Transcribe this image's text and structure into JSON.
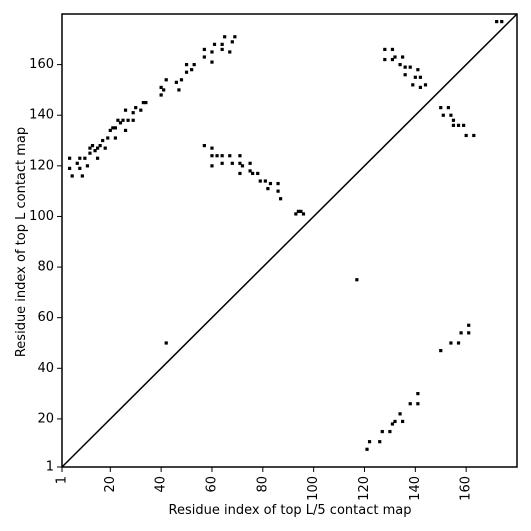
{
  "chart_data": {
    "type": "scatter",
    "x_label": "Residue index of top L/5 contact map",
    "y_label": "Residue index of top L contact map",
    "color": "#000000",
    "xlim": [
      1,
      180
    ],
    "ylim": [
      1,
      180
    ],
    "xticks": [
      1,
      20,
      40,
      60,
      80,
      100,
      120,
      140,
      160
    ],
    "yticks": [
      1,
      20,
      40,
      60,
      80,
      100,
      120,
      140,
      160
    ],
    "x": [
      4,
      4,
      5,
      7,
      8,
      8,
      9,
      10,
      11,
      12,
      12,
      13,
      14,
      15,
      15,
      16,
      17,
      18,
      19,
      20,
      21,
      22,
      22,
      23,
      24,
      25,
      26,
      26,
      27,
      29,
      29,
      30,
      32,
      33,
      34,
      40,
      40,
      41,
      42,
      46,
      47,
      48,
      50,
      50,
      52,
      53,
      57,
      57,
      60,
      60,
      61,
      64,
      64,
      65,
      67,
      68,
      69,
      57,
      60,
      60,
      60,
      62,
      64,
      64,
      67,
      68,
      71,
      71,
      71,
      72,
      75,
      75,
      76,
      78,
      79,
      81,
      82,
      83,
      86,
      86,
      87,
      93,
      94,
      95,
      96,
      117,
      42,
      128,
      128,
      131,
      131,
      132,
      134,
      135,
      136,
      136,
      138,
      140,
      139,
      141,
      142,
      142,
      144,
      150,
      151,
      153,
      154,
      155,
      155,
      157,
      159,
      160,
      163,
      172,
      174,
      121,
      122,
      126,
      127,
      130,
      131,
      132,
      134,
      135,
      138,
      141,
      141,
      150,
      154,
      157,
      158,
      161,
      161
    ],
    "values": [
      119,
      123,
      116,
      121,
      119,
      123,
      116,
      123,
      120,
      125,
      127,
      128,
      126,
      123,
      127,
      128,
      130,
      127,
      131,
      134,
      135,
      131,
      135,
      138,
      137,
      138,
      134,
      142,
      138,
      138,
      141,
      143,
      142,
      145,
      145,
      148,
      151,
      150,
      154,
      153,
      150,
      154,
      157,
      160,
      158,
      160,
      163,
      166,
      161,
      165,
      168,
      166,
      168,
      171,
      165,
      169,
      171,
      128,
      127,
      124,
      120,
      124,
      121,
      124,
      124,
      121,
      124,
      121,
      117,
      120,
      121,
      118,
      117,
      117,
      114,
      114,
      111,
      113,
      113,
      110,
      107,
      101,
      102,
      102,
      101,
      75,
      50,
      166,
      162,
      162,
      166,
      163,
      160,
      163,
      156,
      159,
      159,
      155,
      152,
      158,
      155,
      151,
      152,
      143,
      140,
      143,
      140,
      138,
      136,
      136,
      136,
      132,
      132,
      177,
      177,
      8,
      11,
      11,
      15,
      15,
      18,
      19,
      22,
      19,
      26,
      26,
      30,
      47,
      50,
      50,
      54,
      54,
      57
    ]
  }
}
